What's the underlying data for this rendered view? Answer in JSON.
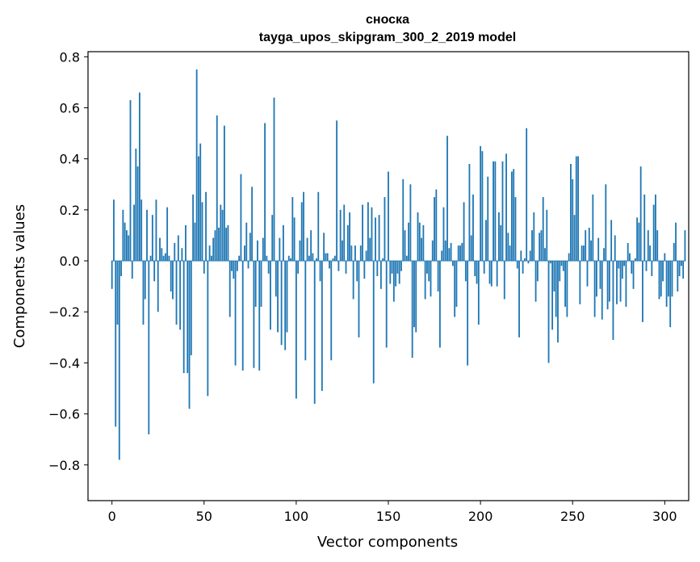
{
  "chart_data": {
    "type": "bar",
    "title_line1": "сноска",
    "title_line2": "tayga_upos_skipgram_300_2_2019 model",
    "xlabel": "Vector components",
    "ylabel": "Components values",
    "xlim": [
      -13,
      313
    ],
    "ylim": [
      -0.94,
      0.82
    ],
    "xticks": [
      0,
      50,
      100,
      150,
      200,
      250,
      300
    ],
    "yticks": [
      -0.8,
      -0.6,
      -0.4,
      -0.2,
      0.0,
      0.2,
      0.4,
      0.6,
      0.8
    ],
    "ytick_labels": [
      "−0.8",
      "−0.6",
      "−0.4",
      "−0.2",
      "0.0",
      "0.2",
      "0.4",
      "0.6",
      "0.8"
    ],
    "bar_color": "#1f77b4",
    "values": [
      -0.11,
      0.24,
      -0.65,
      -0.25,
      -0.78,
      -0.06,
      0.2,
      0.15,
      0.12,
      0.1,
      0.63,
      -0.07,
      0.22,
      0.44,
      0.37,
      0.66,
      0.24,
      -0.25,
      -0.15,
      0.2,
      -0.68,
      0.02,
      0.18,
      -0.08,
      0.24,
      -0.2,
      0.09,
      0.05,
      0.02,
      0.03,
      0.21,
      0.02,
      -0.12,
      -0.15,
      0.07,
      -0.25,
      0.1,
      -0.27,
      0.05,
      -0.44,
      0.14,
      -0.44,
      -0.58,
      -0.37,
      0.26,
      0.15,
      0.75,
      0.41,
      0.46,
      0.23,
      -0.05,
      0.27,
      -0.53,
      0.06,
      0.02,
      0.09,
      0.12,
      0.57,
      0.13,
      0.22,
      0.2,
      0.53,
      0.13,
      0.14,
      -0.22,
      -0.04,
      -0.07,
      -0.41,
      -0.04,
      0.02,
      0.34,
      -0.43,
      0.06,
      0.15,
      -0.03,
      0.11,
      0.29,
      -0.42,
      -0.18,
      0.08,
      -0.43,
      -0.18,
      0.09,
      0.54,
      0.02,
      -0.05,
      -0.27,
      0.18,
      0.64,
      -0.14,
      -0.28,
      0.09,
      -0.33,
      0.14,
      -0.35,
      -0.28,
      0.02,
      0.01,
      0.25,
      0.17,
      -0.54,
      -0.05,
      0.08,
      0.23,
      0.27,
      -0.39,
      0.09,
      0.02,
      0.12,
      0.03,
      -0.56,
      0.01,
      0.27,
      -0.08,
      -0.51,
      0.11,
      0.03,
      0.03,
      -0.03,
      -0.39,
      0.01,
      0.02,
      0.55,
      -0.04,
      0.2,
      0.08,
      0.22,
      -0.05,
      0.14,
      0.19,
      0.06,
      -0.15,
      0.06,
      -0.08,
      -0.3,
      0.06,
      0.22,
      -0.07,
      0.04,
      0.23,
      0.09,
      0.21,
      -0.48,
      0.17,
      -0.06,
      0.18,
      -0.11,
      0.01,
      0.25,
      -0.34,
      0.35,
      -0.09,
      -0.05,
      -0.16,
      -0.1,
      -0.05,
      -0.09,
      -0.04,
      0.32,
      0.12,
      0.02,
      0.15,
      0.3,
      -0.38,
      -0.26,
      -0.28,
      0.19,
      0.15,
      0.09,
      0.14,
      -0.15,
      -0.05,
      -0.08,
      -0.14,
      0.08,
      0.25,
      0.28,
      -0.12,
      -0.34,
      0.04,
      0.21,
      0.08,
      0.49,
      0.05,
      0.07,
      -0.02,
      -0.22,
      -0.18,
      0.06,
      0.06,
      0.07,
      0.23,
      -0.08,
      -0.41,
      0.38,
      0.1,
      0.26,
      -0.06,
      -0.09,
      -0.25,
      0.45,
      0.43,
      -0.05,
      0.16,
      0.33,
      -0.09,
      -0.1,
      0.39,
      0.39,
      -0.1,
      0.19,
      0.14,
      0.39,
      -0.15,
      0.42,
      0.11,
      0.06,
      0.35,
      0.36,
      0.25,
      -0.03,
      -0.3,
      0.04,
      -0.05,
      0.01,
      0.52,
      -0.01,
      0.04,
      0.12,
      0.19,
      -0.16,
      -0.08,
      0.11,
      0.12,
      0.25,
      0.05,
      0.2,
      -0.4,
      -0.01,
      -0.27,
      -0.12,
      -0.22,
      -0.32,
      -0.08,
      -0.02,
      -0.04,
      -0.18,
      -0.22,
      0.03,
      0.38,
      0.32,
      0.18,
      0.41,
      0.41,
      -0.17,
      0.06,
      0.06,
      0.12,
      -0.1,
      0.13,
      0.08,
      0.26,
      -0.22,
      -0.14,
      0.09,
      -0.11,
      -0.23,
      0.05,
      0.3,
      -0.19,
      -0.16,
      0.16,
      -0.31,
      0.1,
      -0.17,
      -0.03,
      -0.16,
      -0.07,
      -0.02,
      -0.18,
      0.07,
      0.03,
      -0.05,
      -0.11,
      0.01,
      0.17,
      0.15,
      0.37,
      -0.24,
      0.26,
      -0.04,
      0.12,
      0.06,
      -0.06,
      0.22,
      0.26,
      0.12,
      -0.15,
      -0.14,
      -0.08,
      0.03,
      -0.18,
      -0.14,
      -0.26,
      -0.14,
      0.07,
      0.15,
      -0.12,
      -0.06,
      -0.02,
      -0.07,
      0.12
    ]
  }
}
